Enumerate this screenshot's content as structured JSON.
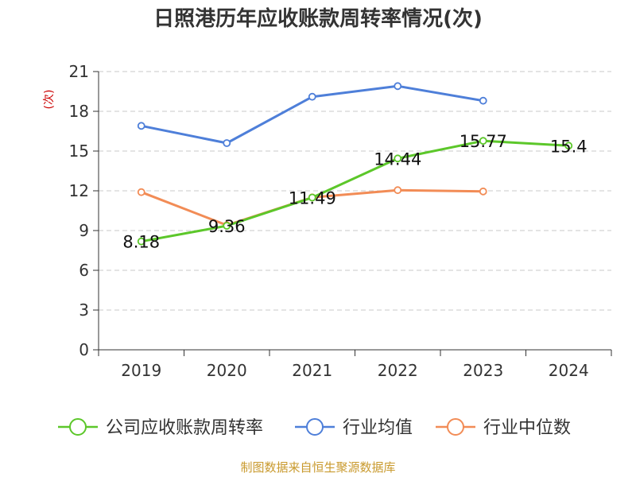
{
  "chart_data": {
    "type": "line",
    "title": "日照港历年应收账款周转率情况(次)",
    "ylabel": "(次)",
    "xlabel": "",
    "categories": [
      "2019",
      "2020",
      "2021",
      "2022",
      "2023",
      "2024"
    ],
    "ylim": [
      0,
      21
    ],
    "yticks": [
      0,
      3,
      6,
      9,
      12,
      15,
      18,
      21
    ],
    "grid": true,
    "legend_position": "bottom",
    "series": [
      {
        "name": "公司应收账款周转率",
        "color": "#5cc72a",
        "values": [
          8.18,
          9.36,
          11.49,
          14.44,
          15.77,
          15.4
        ],
        "labels": [
          "8.18",
          "9.36",
          "11.49",
          "14.44",
          "15.77",
          "15.4"
        ]
      },
      {
        "name": "行业均值",
        "color": "#4e7fd9",
        "values": [
          16.9,
          15.6,
          19.1,
          19.9,
          18.8,
          null
        ]
      },
      {
        "name": "行业中位数",
        "color": "#f28c56",
        "values": [
          11.9,
          9.4,
          11.5,
          12.05,
          11.95,
          null
        ]
      }
    ]
  },
  "footer": {
    "source": "制图数据来自恒生聚源数据库"
  }
}
